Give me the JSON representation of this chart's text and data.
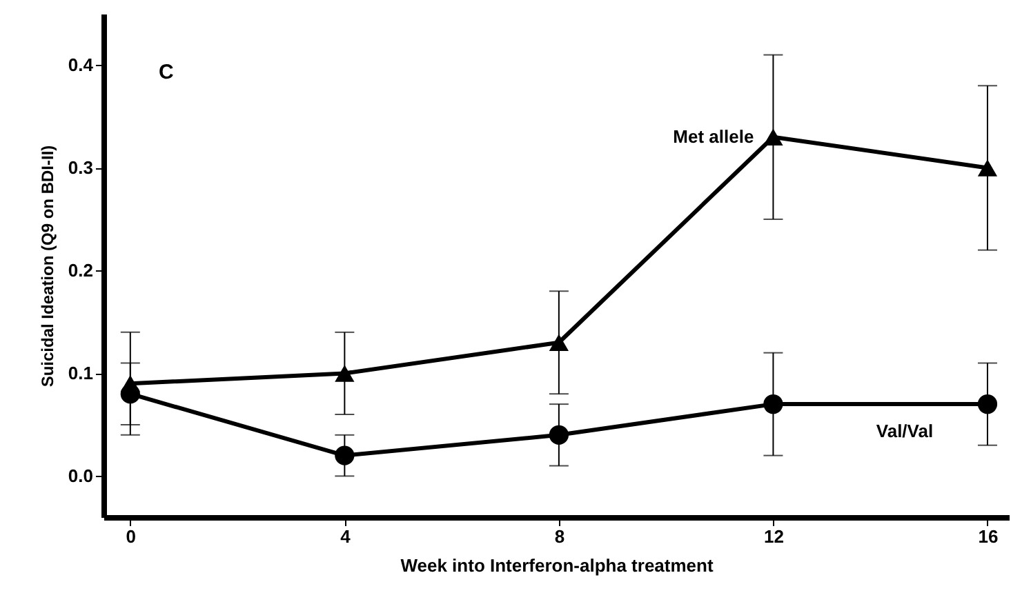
{
  "chart_data": {
    "type": "line",
    "title": "C",
    "xlabel": "Week into Interferon-alpha treatment",
    "ylabel": "Suicidal Ideation (Q9 on BDI-II)",
    "x": [
      0,
      4,
      8,
      12,
      16
    ],
    "series": [
      {
        "name": "Met allele",
        "color": "#000000",
        "marker": "triangle",
        "values": [
          0.09,
          0.1,
          0.13,
          0.33,
          0.3
        ],
        "errors": [
          0.05,
          0.04,
          0.05,
          0.08,
          0.08
        ]
      },
      {
        "name": "Val/Val",
        "color": "#000000",
        "marker": "circle",
        "values": [
          0.08,
          0.02,
          0.04,
          0.07,
          0.07
        ],
        "errors": [
          0.03,
          0.02,
          0.03,
          0.05,
          0.04
        ]
      }
    ],
    "xlim": [
      -0.5,
      16.4
    ],
    "xticks": [
      0,
      4,
      8,
      12,
      16
    ],
    "ylim": [
      -0.04,
      0.45
    ],
    "yticks": [
      {
        "value": 0.0,
        "label": "0.0"
      },
      0.1,
      0.2,
      0.3,
      0.4
    ],
    "grid": false,
    "line_style": "solid"
  }
}
